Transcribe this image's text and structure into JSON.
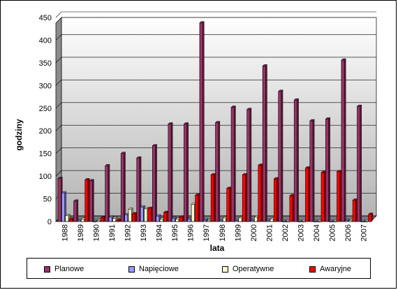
{
  "chart_data": {
    "type": "bar",
    "title": "",
    "xlabel": "lata",
    "ylabel": "godziny",
    "ylim": [
      0,
      450
    ],
    "yticks": [
      0,
      50,
      100,
      150,
      200,
      250,
      300,
      350,
      400,
      450
    ],
    "grid": true,
    "legend_position": "bottom",
    "categories": [
      "1988",
      "1989",
      "1990",
      "1991",
      "1992",
      "1993",
      "1994",
      "1995",
      "1996",
      "1997",
      "1998",
      "1999",
      "2000",
      "2001",
      "2002",
      "2003",
      "2004",
      "2005",
      "2006",
      "2007"
    ],
    "series": [
      {
        "name": "Planowe",
        "color": "#993366",
        "values": [
          95,
          45,
          90,
          123,
          150,
          140,
          167,
          215,
          215,
          438,
          218,
          252,
          247,
          343,
          287,
          268,
          222,
          226,
          356,
          254
        ]
      },
      {
        "name": "Napięciowe",
        "color": "#9999FF",
        "values": [
          63,
          2,
          0,
          10,
          15,
          32,
          12,
          7,
          5,
          3,
          2,
          2,
          2,
          2,
          0,
          0,
          0,
          0,
          2,
          0
        ]
      },
      {
        "name": "Operatywne",
        "color": "#FFFFCC",
        "values": [
          13,
          5,
          2,
          7,
          27,
          28,
          5,
          5,
          38,
          2,
          8,
          8,
          10,
          5,
          0,
          0,
          0,
          0,
          2,
          0
        ]
      },
      {
        "name": "Awaryjne",
        "color": "#FF0000",
        "values": [
          5,
          92,
          8,
          3,
          17,
          29,
          20,
          10,
          58,
          103,
          73,
          103,
          124,
          94,
          57,
          118,
          108,
          110,
          47,
          16
        ]
      }
    ]
  }
}
